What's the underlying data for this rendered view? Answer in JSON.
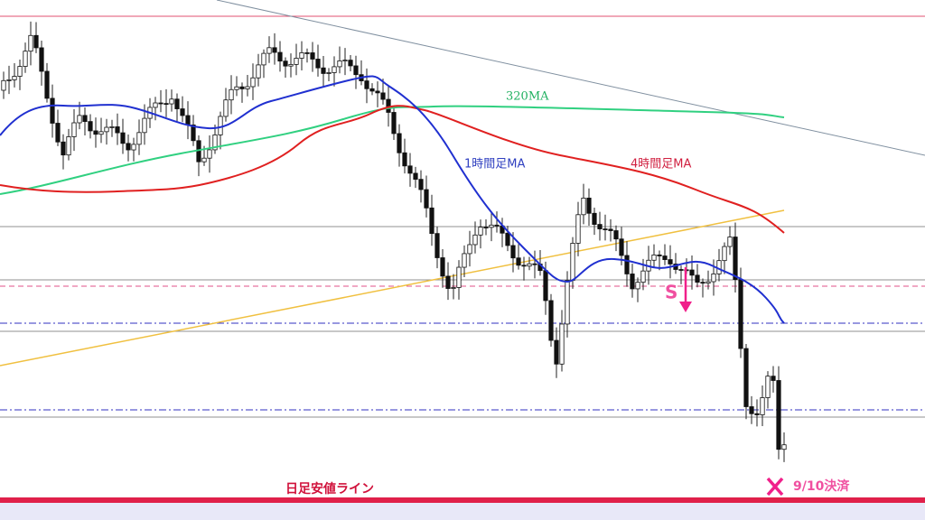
{
  "annotations": {
    "ma320": "320MA",
    "ma1h": "1時間足MA",
    "ma4h": "4時間足MA",
    "signal": "S",
    "daily_low_line": "日足安値ライン",
    "exit": "9/10決済"
  }
}
